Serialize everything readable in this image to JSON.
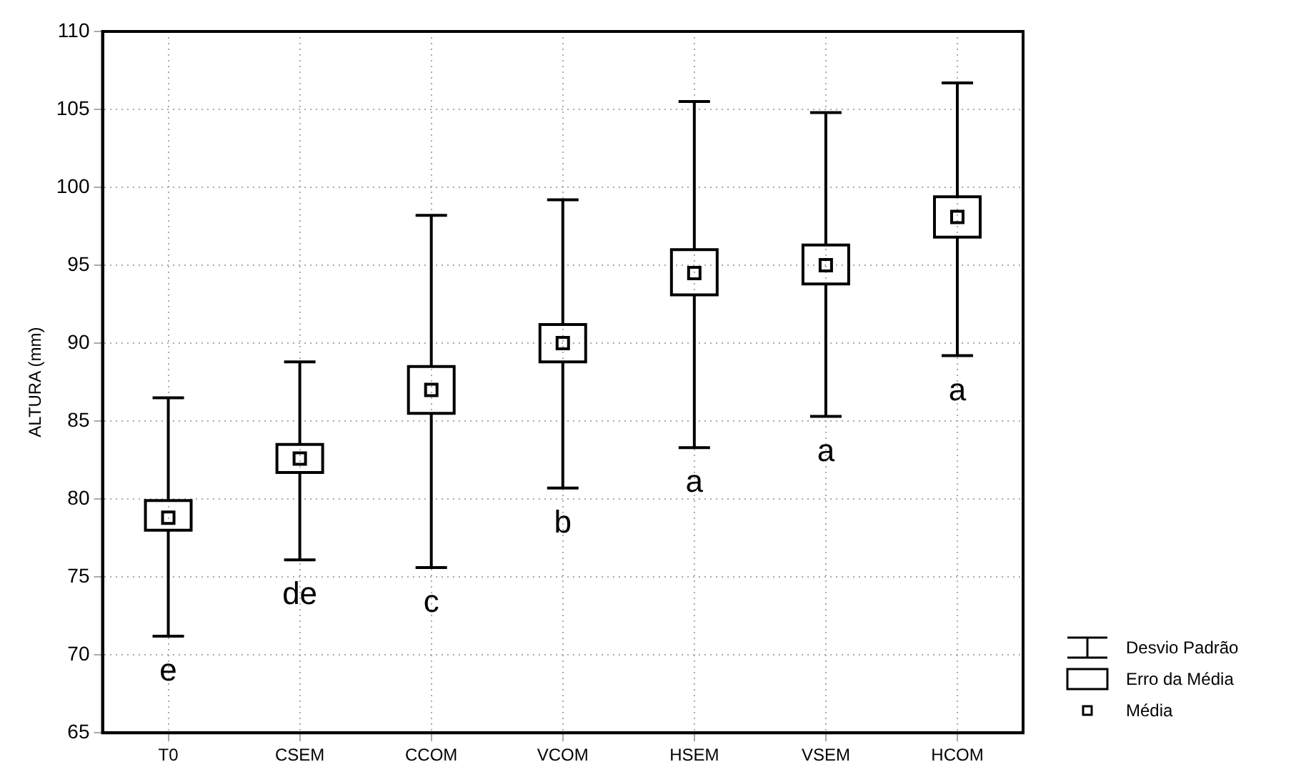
{
  "chart_data": {
    "type": "box",
    "ylabel": "ALTURA (mm)",
    "categories": [
      "T0",
      "CSEM",
      "CCOM",
      "VCOM",
      "HSEM",
      "VSEM",
      "HCOM"
    ],
    "color": "#000000",
    "boxes": [
      {
        "low": 71.2,
        "q1": 78.0,
        "mean": 78.8,
        "q3": 79.9,
        "high": 86.5
      },
      {
        "low": 76.1,
        "q1": 81.7,
        "mean": 82.6,
        "q3": 83.5,
        "high": 88.8
      },
      {
        "low": 75.6,
        "q1": 85.5,
        "mean": 87.0,
        "q3": 88.5,
        "high": 98.2
      },
      {
        "low": 80.7,
        "q1": 88.8,
        "mean": 90.0,
        "q3": 91.2,
        "high": 99.2
      },
      {
        "low": 83.3,
        "q1": 93.1,
        "mean": 94.5,
        "q3": 96.0,
        "high": 105.5
      },
      {
        "low": 85.3,
        "q1": 93.8,
        "mean": 95.0,
        "q3": 96.3,
        "high": 104.8
      },
      {
        "low": 89.2,
        "q1": 96.8,
        "mean": 98.1,
        "q3": 99.4,
        "high": 106.7
      }
    ],
    "ylim": [
      65,
      110
    ],
    "yticks": [
      65,
      70,
      75,
      80,
      85,
      90,
      95,
      100,
      105,
      110
    ],
    "grid": true,
    "marker": "square",
    "annotations": [
      "e",
      "de",
      "c",
      "b",
      "a",
      "a",
      "a",
      "Desvio Padrão",
      "Erro da Média",
      "Média"
    ]
  }
}
